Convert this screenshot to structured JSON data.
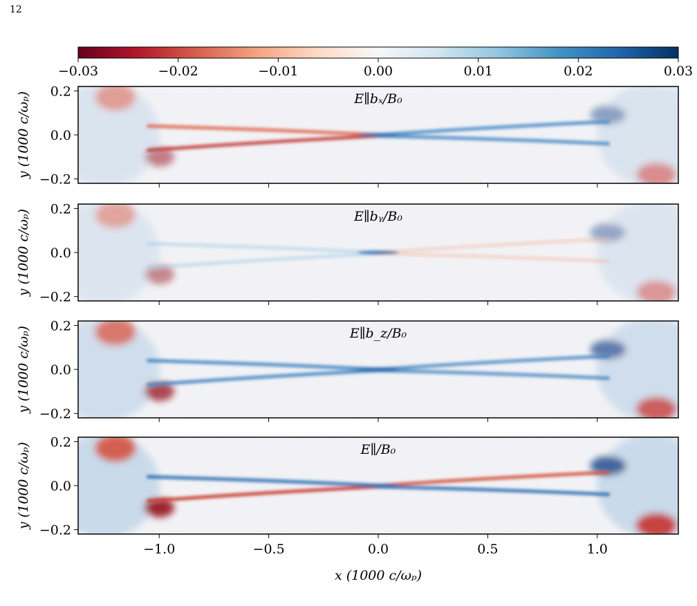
{
  "page": {
    "number": "12"
  },
  "figure": {
    "colorbar": {
      "range": [
        -0.03,
        0.03
      ],
      "ticks": [
        "−0.03",
        "−0.02",
        "−0.01",
        "0.00",
        "0.01",
        "0.02",
        "0.03"
      ],
      "colormap": "RdBu"
    },
    "xaxis": {
      "label": "x (1000 c/ωₚ)",
      "range": [
        -1.37,
        1.37
      ],
      "ticks": [
        "−1.0",
        "−0.5",
        "0.0",
        "0.5",
        "1.0"
      ]
    },
    "yaxis": {
      "label": "y (1000 c/ωₚ)",
      "range": [
        -0.22,
        0.22
      ],
      "ticks": [
        "0.2",
        "0.0",
        "−0.2"
      ]
    },
    "panels": [
      {
        "title": "E∥bₓ/B₀"
      },
      {
        "title": "E∥bᵧ/B₀"
      },
      {
        "title": "E∥b_z/B₀"
      },
      {
        "title": "E∥/B₀"
      }
    ]
  },
  "chart_data": [
    {
      "type": "heatmap",
      "title": "E∥bₓ/B₀",
      "xlim": [
        -1.37,
        1.37
      ],
      "ylim": [
        -0.22,
        0.22
      ],
      "clim": [
        -0.03,
        0.03
      ],
      "features": {
        "left_branch": "red (negative)",
        "right_branch": "blue (positive)"
      }
    },
    {
      "type": "heatmap",
      "title": "E∥bᵧ/B₀",
      "xlim": [
        -1.37,
        1.37
      ],
      "ylim": [
        -0.22,
        0.22
      ],
      "clim": [
        -0.03,
        0.03
      ],
      "features": {
        "left_branch": "faint blue",
        "right_branch": "faint red"
      }
    },
    {
      "type": "heatmap",
      "title": "E∥b_z/B₀",
      "xlim": [
        -1.37,
        1.37
      ],
      "ylim": [
        -0.22,
        0.22
      ],
      "clim": [
        -0.03,
        0.03
      ],
      "features": {
        "left_branch": "blue",
        "right_branch": "blue"
      }
    },
    {
      "type": "heatmap",
      "title": "E∥/B₀",
      "xlim": [
        -1.37,
        1.37
      ],
      "ylim": [
        -0.22,
        0.22
      ],
      "clim": [
        -0.03,
        0.03
      ],
      "features": {
        "left_branch": "blue upper / red lower",
        "right_branch": "red upper / blue lower"
      }
    }
  ]
}
